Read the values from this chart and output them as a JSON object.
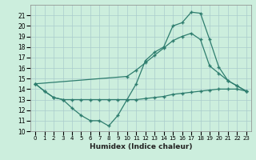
{
  "xlabel": "Humidex (Indice chaleur)",
  "bg_color": "#cceedd",
  "grid_color": "#aacccc",
  "line_color": "#2e7d6e",
  "xlim": [
    -0.5,
    23.5
  ],
  "ylim": [
    10,
    22
  ],
  "yticks": [
    10,
    11,
    12,
    13,
    14,
    15,
    16,
    17,
    18,
    19,
    20,
    21
  ],
  "xticks": [
    0,
    1,
    2,
    3,
    4,
    5,
    6,
    7,
    8,
    9,
    10,
    11,
    12,
    13,
    14,
    15,
    16,
    17,
    18,
    19,
    20,
    21,
    22,
    23
  ],
  "series": [
    {
      "x": [
        0,
        1,
        2,
        3,
        4,
        5,
        6,
        7,
        8,
        9,
        10,
        11,
        12,
        13,
        14,
        15,
        16,
        17,
        18,
        19,
        20,
        21,
        22,
        23
      ],
      "y": [
        14.5,
        13.8,
        13.2,
        13.0,
        12.2,
        11.5,
        11.0,
        11.0,
        10.5,
        11.5,
        13.0,
        14.5,
        16.7,
        17.5,
        18.0,
        20.0,
        20.3,
        21.3,
        21.2,
        18.7,
        16.1,
        14.8,
        14.3,
        13.8
      ]
    },
    {
      "comment": "diagonal line from 0,14.5 to 23,13.8 via 18,18.7",
      "x": [
        0,
        10,
        11,
        12,
        13,
        14,
        15,
        16,
        17,
        18,
        19,
        20,
        21,
        22,
        23
      ],
      "y": [
        14.5,
        15.2,
        15.8,
        16.5,
        17.2,
        17.9,
        18.6,
        19.0,
        19.3,
        18.7,
        16.2,
        15.5,
        14.8,
        14.3,
        13.8
      ]
    },
    {
      "x": [
        0,
        1,
        2,
        3,
        4,
        5,
        6,
        7,
        8,
        9,
        10,
        11,
        12,
        13,
        14,
        15,
        16,
        17,
        18,
        19,
        20,
        21,
        22,
        23
      ],
      "y": [
        14.5,
        13.8,
        13.2,
        13.0,
        13.0,
        13.0,
        13.0,
        13.0,
        13.0,
        13.0,
        13.0,
        13.0,
        13.1,
        13.2,
        13.3,
        13.5,
        13.6,
        13.7,
        13.8,
        13.9,
        14.0,
        14.0,
        14.0,
        13.8
      ]
    }
  ]
}
